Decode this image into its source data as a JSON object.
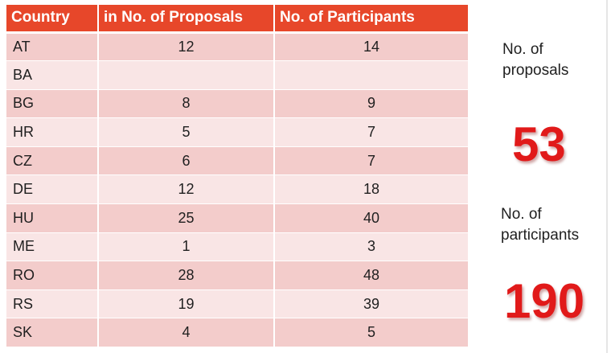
{
  "table": {
    "headers": [
      "Country",
      "in No. of Proposals",
      "No. of Participants"
    ],
    "rows": [
      {
        "country": "AT",
        "proposals": "12",
        "participants": "14"
      },
      {
        "country": "BA",
        "proposals": "",
        "participants": ""
      },
      {
        "country": "BG",
        "proposals": "8",
        "participants": "9"
      },
      {
        "country": "HR",
        "proposals": "5",
        "participants": "7"
      },
      {
        "country": "CZ",
        "proposals": "6",
        "participants": "7"
      },
      {
        "country": "DE",
        "proposals": "12",
        "participants": "18"
      },
      {
        "country": "HU",
        "proposals": "25",
        "participants": "40"
      },
      {
        "country": "ME",
        "proposals": "1",
        "participants": "3"
      },
      {
        "country": "RO",
        "proposals": "28",
        "participants": "48"
      },
      {
        "country": "RS",
        "proposals": "19",
        "participants": "39"
      },
      {
        "country": "SK",
        "proposals": "4",
        "participants": "5"
      }
    ]
  },
  "summary": {
    "proposals_label_line1": "No. of",
    "proposals_label_line2": "proposals",
    "proposals_value": "53",
    "participants_label_line1": "No. of",
    "participants_label_line2": "participants",
    "participants_value": "190"
  },
  "colors": {
    "header_bg": "#e7472a",
    "row_dark": "#f3cccb",
    "row_light": "#f9e5e5",
    "summary_value": "#e11a1a"
  }
}
